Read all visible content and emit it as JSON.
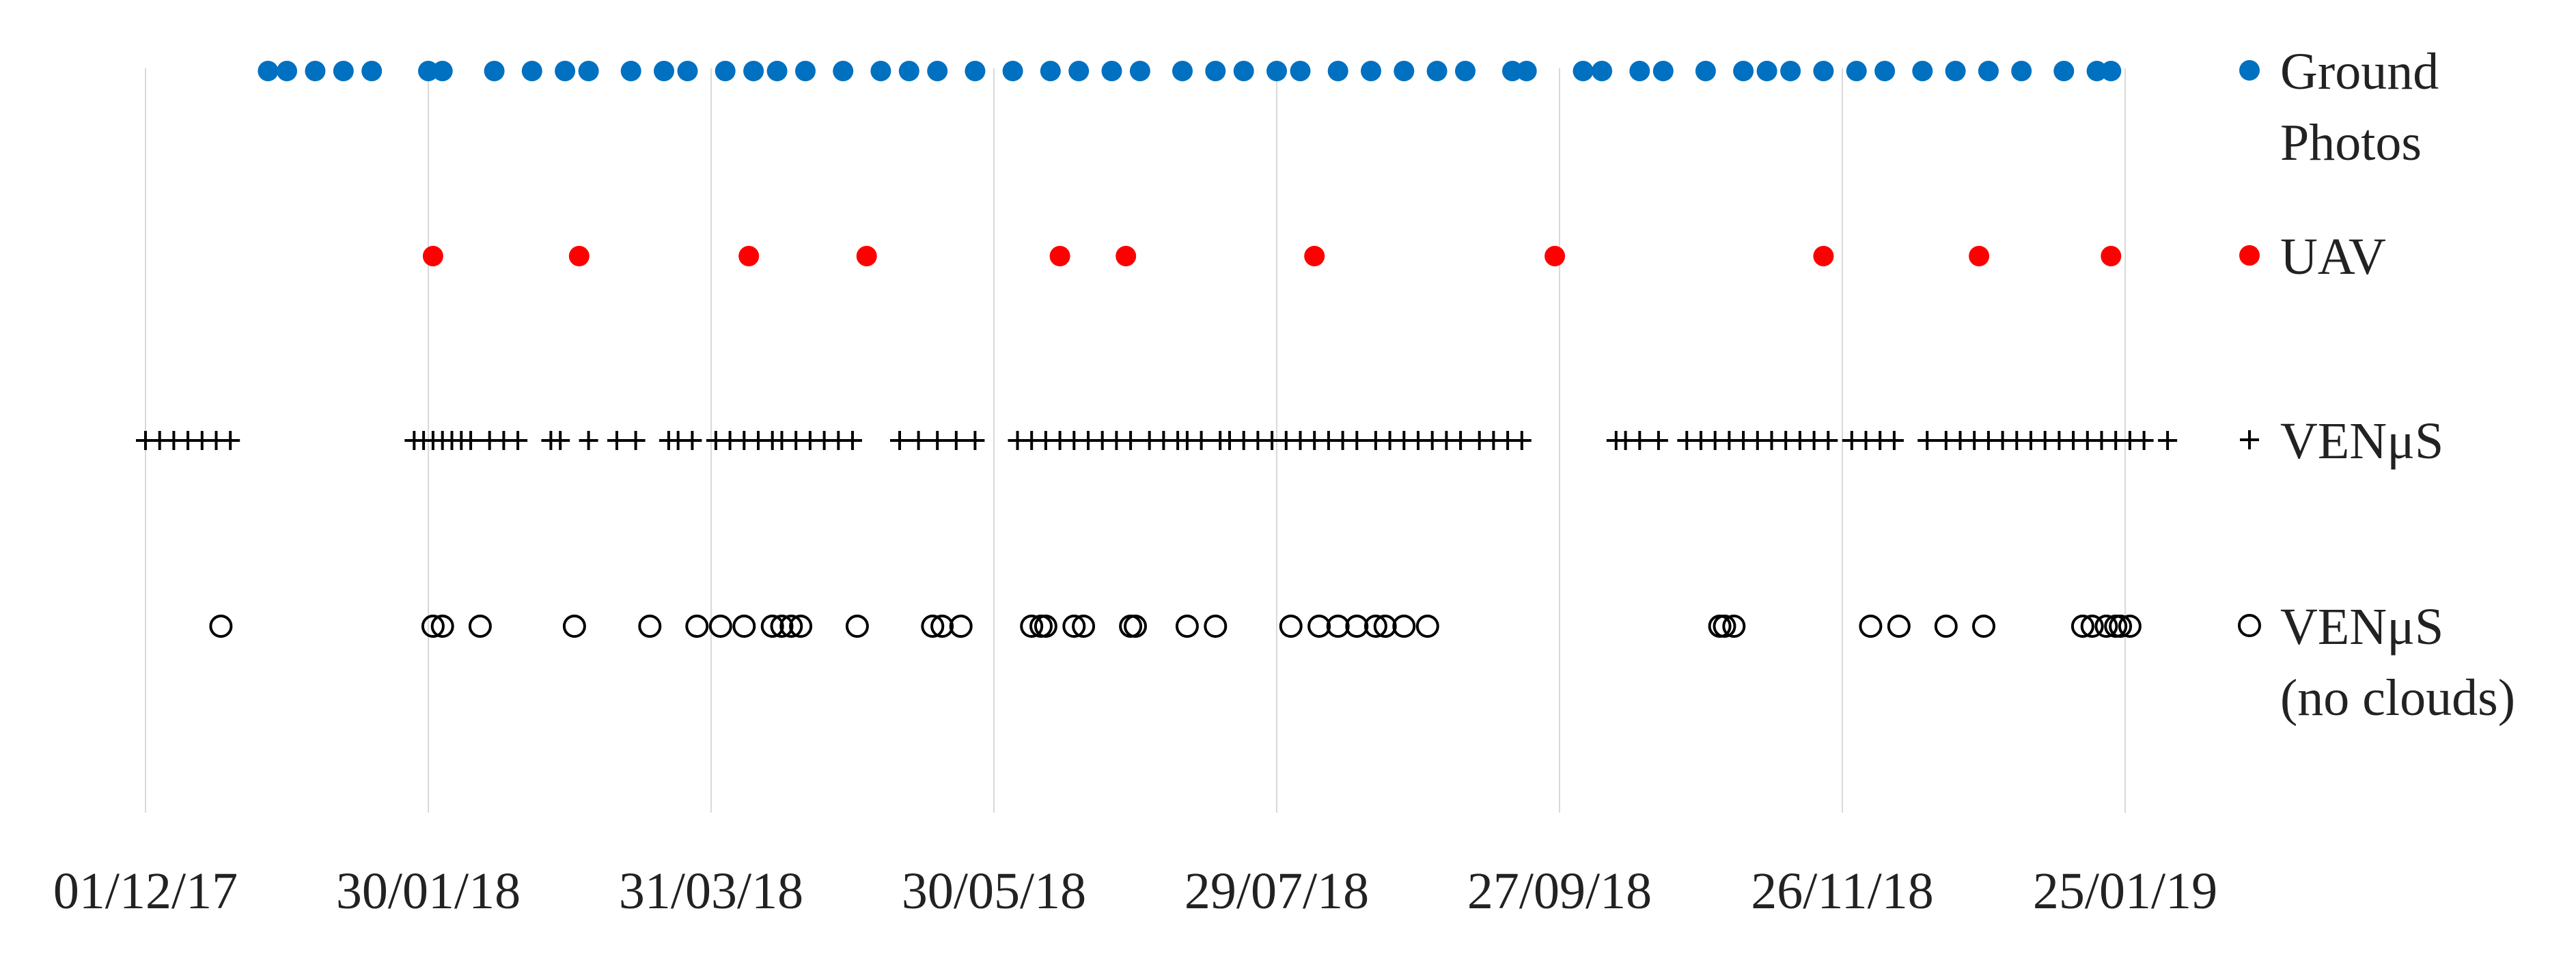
{
  "chart_data": {
    "type": "scatter",
    "title": "",
    "xlabel": "",
    "ylabel": "",
    "x_axis": {
      "type": "date",
      "min": "2017-12-01",
      "max": "2019-01-25",
      "tick_values": [
        "2017-12-01",
        "2018-01-30",
        "2018-03-31",
        "2018-05-30",
        "2018-07-29",
        "2018-09-27",
        "2018-11-26",
        "2019-01-25"
      ],
      "tick_labels": [
        "01/12/17",
        "30/01/18",
        "31/03/18",
        "30/05/18",
        "29/07/18",
        "27/09/18",
        "26/11/18",
        "25/01/19"
      ],
      "grid": "vertical"
    },
    "legend": {
      "placement": "right"
    },
    "series": [
      {
        "name": "Ground\nPhotos",
        "legend_lines": [
          "Ground",
          "Photos"
        ],
        "marker": "filled-circle",
        "color": "#0070C0",
        "x": [
          "2017-12-27",
          "2017-12-31",
          "2018-01-06",
          "2018-01-12",
          "2018-01-18",
          "2018-01-30",
          "2018-02-02",
          "2018-02-13",
          "2018-02-21",
          "2018-02-28",
          "2018-03-05",
          "2018-03-14",
          "2018-03-21",
          "2018-03-26",
          "2018-04-03",
          "2018-04-09",
          "2018-04-14",
          "2018-04-20",
          "2018-04-28",
          "2018-05-06",
          "2018-05-12",
          "2018-05-18",
          "2018-05-26",
          "2018-06-03",
          "2018-06-11",
          "2018-06-17",
          "2018-06-24",
          "2018-06-30",
          "2018-07-09",
          "2018-07-16",
          "2018-07-22",
          "2018-07-29",
          "2018-08-03",
          "2018-08-11",
          "2018-08-18",
          "2018-08-25",
          "2018-09-01",
          "2018-09-07",
          "2018-09-17",
          "2018-09-20",
          "2018-10-02",
          "2018-10-06",
          "2018-10-14",
          "2018-10-19",
          "2018-10-28",
          "2018-11-05",
          "2018-11-10",
          "2018-11-15",
          "2018-11-22",
          "2018-11-29",
          "2018-12-05",
          "2018-12-13",
          "2018-12-20",
          "2018-12-27",
          "2019-01-03",
          "2019-01-12",
          "2019-01-19",
          "2019-01-22"
        ],
        "y": "Ground Photos"
      },
      {
        "name": "UAV",
        "legend_lines": [
          "UAV"
        ],
        "marker": "filled-circle",
        "color": "#FF0000",
        "x": [
          "2018-01-31",
          "2018-03-03",
          "2018-04-08",
          "2018-05-03",
          "2018-06-13",
          "2018-06-27",
          "2018-08-06",
          "2018-09-26",
          "2018-11-22",
          "2018-12-25",
          "2019-01-22"
        ],
        "y": "UAV"
      },
      {
        "name": "VENμS",
        "legend_lines": [
          "VENμS"
        ],
        "marker": "plus",
        "color": "#000000",
        "x": [
          "2017-12-01",
          "2017-12-04",
          "2017-12-07",
          "2017-12-10",
          "2017-12-13",
          "2017-12-16",
          "2017-12-19",
          "2018-01-27",
          "2018-01-29",
          "2018-01-31",
          "2018-02-02",
          "2018-02-04",
          "2018-02-06",
          "2018-02-08",
          "2018-02-12",
          "2018-02-15",
          "2018-02-18",
          "2018-02-25",
          "2018-02-27",
          "2018-03-05",
          "2018-03-11",
          "2018-03-15",
          "2018-03-22",
          "2018-03-24",
          "2018-03-27",
          "2018-04-01",
          "2018-04-04",
          "2018-04-07",
          "2018-04-10",
          "2018-04-13",
          "2018-04-15",
          "2018-04-18",
          "2018-04-21",
          "2018-04-24",
          "2018-04-27",
          "2018-04-30",
          "2018-05-10",
          "2018-05-14",
          "2018-05-18",
          "2018-05-22",
          "2018-05-26",
          "2018-06-04",
          "2018-06-07",
          "2018-06-10",
          "2018-06-13",
          "2018-06-16",
          "2018-06-19",
          "2018-06-22",
          "2018-06-25",
          "2018-06-28",
          "2018-07-02",
          "2018-07-05",
          "2018-07-08",
          "2018-07-10",
          "2018-07-13",
          "2018-07-17",
          "2018-07-19",
          "2018-07-22",
          "2018-07-25",
          "2018-07-28",
          "2018-07-31",
          "2018-08-03",
          "2018-08-06",
          "2018-08-09",
          "2018-08-12",
          "2018-08-15",
          "2018-08-19",
          "2018-08-22",
          "2018-08-25",
          "2018-08-28",
          "2018-08-31",
          "2018-09-03",
          "2018-09-06",
          "2018-09-10",
          "2018-09-13",
          "2018-09-16",
          "2018-09-19",
          "2018-10-09",
          "2018-10-11",
          "2018-10-14",
          "2018-10-18",
          "2018-10-24",
          "2018-10-27",
          "2018-10-30",
          "2018-11-02",
          "2018-11-05",
          "2018-11-08",
          "2018-11-11",
          "2018-11-14",
          "2018-11-17",
          "2018-11-20",
          "2018-11-23",
          "2018-11-28",
          "2018-12-01",
          "2018-12-04",
          "2018-12-07",
          "2018-12-14",
          "2018-12-18",
          "2018-12-21",
          "2018-12-24",
          "2018-12-27",
          "2018-12-30",
          "2019-01-02",
          "2019-01-05",
          "2019-01-08",
          "2019-01-11",
          "2019-01-14",
          "2019-01-17",
          "2019-01-20",
          "2019-01-23",
          "2019-01-26",
          "2019-01-29",
          "2019-02-03"
        ],
        "y": "VENμS"
      },
      {
        "name": "VENμS\n(no clouds)",
        "legend_lines": [
          "VENμS",
          "(no clouds)"
        ],
        "marker": "open-circle",
        "color": "#000000",
        "x": [
          "2017-12-17",
          "2018-01-31",
          "2018-02-02",
          "2018-02-10",
          "2018-03-02",
          "2018-03-18",
          "2018-03-28",
          "2018-04-02",
          "2018-04-07",
          "2018-04-13",
          "2018-04-15",
          "2018-04-17",
          "2018-04-19",
          "2018-05-01",
          "2018-05-17",
          "2018-05-19",
          "2018-05-23",
          "2018-06-07",
          "2018-06-09",
          "2018-06-10",
          "2018-06-16",
          "2018-06-18",
          "2018-06-28",
          "2018-06-29",
          "2018-07-10",
          "2018-07-16",
          "2018-08-01",
          "2018-08-07",
          "2018-08-11",
          "2018-08-15",
          "2018-08-19",
          "2018-08-21",
          "2018-08-25",
          "2018-08-30",
          "2018-10-31",
          "2018-11-01",
          "2018-11-03",
          "2018-12-02",
          "2018-12-08",
          "2018-12-18",
          "2018-12-26",
          "2019-01-16",
          "2019-01-18",
          "2019-01-21",
          "2019-01-23",
          "2019-01-24",
          "2019-01-26"
        ],
        "y": "VENμS (no clouds)"
      }
    ]
  }
}
